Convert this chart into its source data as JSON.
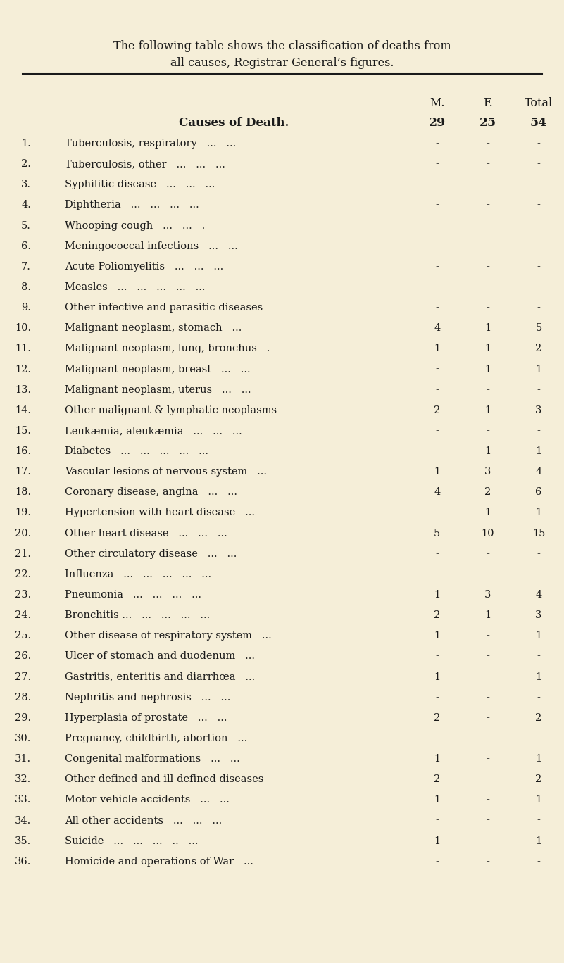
{
  "title_line1": "The following table shows the classification of deaths from",
  "title_line2": "all causes, Registrar General’s figures.",
  "bg_color": "#f5eed8",
  "text_color": "#1a1a1a",
  "col_header": "Causes of Death.",
  "col_M": "M.",
  "col_F": "F.",
  "col_Total": "Total",
  "total_M": "29",
  "total_F": "25",
  "total_Total": "54",
  "rows": [
    {
      "num": "1.",
      "cause": "Tuberculosis, respiratory",
      "dots": "...   ...",
      "M": "-",
      "F": "-",
      "T": "-"
    },
    {
      "num": "2.",
      "cause": "Tuberculosis, other",
      "dots": "...   ...   ...",
      "M": "-",
      "F": "-",
      "T": "-"
    },
    {
      "num": "3.",
      "cause": "Syphilitic disease",
      "dots": "...   ...   ...",
      "M": "-",
      "F": "-",
      "T": "-"
    },
    {
      "num": "4.",
      "cause": "Diphtheria",
      "dots": "...   ...   ...   ...",
      "M": "-",
      "F": "-",
      "T": "-"
    },
    {
      "num": "5.",
      "cause": "Whooping cough",
      "dots": "...   ...   .",
      "M": "-",
      "F": "-",
      "T": "-"
    },
    {
      "num": "6.",
      "cause": "Meningococcal infections",
      "dots": "...   ...",
      "M": "-",
      "F": "-",
      "T": "-"
    },
    {
      "num": "7.",
      "cause": "Acute Poliomyelitis",
      "dots": "...   ...   ...",
      "M": "-",
      "F": "-",
      "T": "-"
    },
    {
      "num": "8.",
      "cause": "Measles",
      "dots": "...   ...   ...   ...   ...",
      "M": "-",
      "F": "-",
      "T": "-"
    },
    {
      "num": "9.",
      "cause": "Other infective and parasitic diseases",
      "dots": "",
      "M": "-",
      "F": "-",
      "T": "-"
    },
    {
      "num": "10.",
      "cause": "Malignant neoplasm, stomach",
      "dots": "...",
      "M": "4",
      "F": "1",
      "T": "5"
    },
    {
      "num": "11.",
      "cause": "Malignant neoplasm, lung, bronchus",
      "dots": ".",
      "M": "1",
      "F": "1",
      "T": "2"
    },
    {
      "num": "12.",
      "cause": "Malignant neoplasm, breast",
      "dots": "...   ...",
      "M": "-",
      "F": "1",
      "T": "1"
    },
    {
      "num": "13.",
      "cause": "Malignant neoplasm, uterus",
      "dots": "...   ...",
      "M": "-",
      "F": "-",
      "T": "-"
    },
    {
      "num": "14.",
      "cause": "Other malignant & lymphatic neoplasms",
      "dots": "",
      "M": "2",
      "F": "1",
      "T": "3"
    },
    {
      "num": "15.",
      "cause": "Leukæmia, aleukæmia",
      "dots": "...   ...   ...",
      "M": "-",
      "F": "-",
      "T": "-"
    },
    {
      "num": "16.",
      "cause": "Diabetes",
      "dots": "...   ...   ...   ...   ...",
      "M": "-",
      "F": "1",
      "T": "1"
    },
    {
      "num": "17.",
      "cause": "Vascular lesions of nervous system",
      "dots": "...",
      "M": "1",
      "F": "3",
      "T": "4"
    },
    {
      "num": "18.",
      "cause": "Coronary disease, angina",
      "dots": "...   ...",
      "M": "4",
      "F": "2",
      "T": "6"
    },
    {
      "num": "19.",
      "cause": "Hypertension with heart disease",
      "dots": "...",
      "M": "-",
      "F": "1",
      "T": "1"
    },
    {
      "num": "20.",
      "cause": "Other heart disease",
      "dots": "...   ...   ...",
      "M": "5",
      "F": "10",
      "T": "15"
    },
    {
      "num": "21.",
      "cause": "Other circulatory disease",
      "dots": "...   ...",
      "M": "-",
      "F": "-",
      "T": "-"
    },
    {
      "num": "22.",
      "cause": "Influenza",
      "dots": "...   ...   ...   ...   ...",
      "M": "-",
      "F": "-",
      "T": "-"
    },
    {
      "num": "23.",
      "cause": "Pneumonia",
      "dots": "...   ...   ...   ...",
      "M": "1",
      "F": "3",
      "T": "4"
    },
    {
      "num": "24.",
      "cause": "Bronchitis ...",
      "dots": "...   ...   ...   ...",
      "M": "2",
      "F": "1",
      "T": "3"
    },
    {
      "num": "25.",
      "cause": "Other disease of respiratory system",
      "dots": "...",
      "M": "1",
      "F": "-",
      "T": "1"
    },
    {
      "num": "26.",
      "cause": "Ulcer of stomach and duodenum",
      "dots": "...",
      "M": "-",
      "F": "-",
      "T": "-"
    },
    {
      "num": "27.",
      "cause": "Gastritis, enteritis and diarrhœa",
      "dots": "...",
      "M": "1",
      "F": "-",
      "T": "1"
    },
    {
      "num": "28.",
      "cause": "Nephritis and nephrosis",
      "dots": "...   ...",
      "M": "-",
      "F": "-",
      "T": "-"
    },
    {
      "num": "29.",
      "cause": "Hyperplasia of prostate",
      "dots": "...   ...",
      "M": "2",
      "F": "-",
      "T": "2"
    },
    {
      "num": "30.",
      "cause": "Pregnancy, childbirth, abortion",
      "dots": "...",
      "M": "-",
      "F": "-",
      "T": "-"
    },
    {
      "num": "31.",
      "cause": "Congenital malformations",
      "dots": "...   ...",
      "M": "1",
      "F": "-",
      "T": "1"
    },
    {
      "num": "32.",
      "cause": "Other defined and ill-defined diseases",
      "dots": "",
      "M": "2",
      "F": "-",
      "T": "2"
    },
    {
      "num": "33.",
      "cause": "Motor vehicle accidents",
      "dots": "...   ...",
      "M": "1",
      "F": "-",
      "T": "1"
    },
    {
      "num": "34.",
      "cause": "All other accidents",
      "dots": "...   ...   ...",
      "M": "-",
      "F": "-",
      "T": "-"
    },
    {
      "num": "35.",
      "cause": "Suicide",
      "dots": "...   ...   ...   ..   ...",
      "M": "1",
      "F": "-",
      "T": "1"
    },
    {
      "num": "36.",
      "cause": "Homicide and operations of War",
      "dots": "...",
      "M": "-",
      "F": "-",
      "T": "-"
    }
  ]
}
